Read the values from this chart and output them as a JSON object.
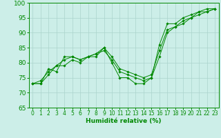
{
  "xlabel": "Humidité relative (%)",
  "xlim": [
    -0.5,
    23.5
  ],
  "ylim": [
    65,
    100
  ],
  "xticks": [
    0,
    1,
    2,
    3,
    4,
    5,
    6,
    7,
    8,
    9,
    10,
    11,
    12,
    13,
    14,
    15,
    16,
    17,
    18,
    19,
    20,
    21,
    22,
    23
  ],
  "yticks": [
    65,
    70,
    75,
    80,
    85,
    90,
    95,
    100
  ],
  "bg_color": "#cceee8",
  "grid_color": "#aad4cc",
  "line_color": "#008800",
  "series": [
    [
      73,
      73,
      78,
      77,
      82,
      82,
      81,
      82,
      82,
      85,
      80,
      75,
      75,
      73,
      73,
      75,
      86,
      93,
      93,
      95,
      96,
      97,
      98,
      98
    ],
    [
      73,
      73,
      76,
      79,
      79,
      81,
      80,
      82,
      83,
      84,
      81,
      77,
      76,
      75,
      74,
      75,
      82,
      90,
      92,
      93,
      95,
      96,
      97,
      98
    ],
    [
      73,
      74,
      77,
      79,
      81,
      82,
      81,
      82,
      83,
      85,
      82,
      78,
      77,
      76,
      75,
      76,
      84,
      91,
      92,
      94,
      95,
      97,
      97,
      98
    ]
  ],
  "xlabel_fontsize": 6.5,
  "tick_fontsize": 5.5,
  "ytick_fontsize": 6.5
}
